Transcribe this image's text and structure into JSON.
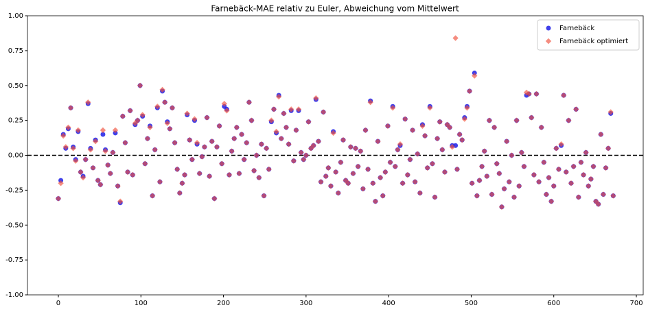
{
  "chart_data": {
    "type": "scatter",
    "title": "Farnebäck-MAE relativ zu Euler, Abweichung vom Mittelwert",
    "x": [
      0,
      3,
      6,
      9,
      12,
      15,
      18,
      21,
      24,
      27,
      30,
      33,
      36,
      39,
      42,
      45,
      48,
      51,
      54,
      57,
      60,
      63,
      66,
      69,
      72,
      75,
      78,
      81,
      84,
      87,
      90,
      93,
      96,
      99,
      102,
      105,
      108,
      111,
      114,
      117,
      120,
      123,
      126,
      129,
      132,
      135,
      138,
      141,
      144,
      147,
      150,
      153,
      156,
      159,
      162,
      165,
      168,
      171,
      174,
      177,
      180,
      183,
      186,
      189,
      192,
      195,
      198,
      201,
      204,
      207,
      210,
      213,
      216,
      219,
      222,
      225,
      228,
      231,
      234,
      237,
      240,
      243,
      246,
      249,
      252,
      255,
      258,
      261,
      264,
      267,
      270,
      273,
      276,
      279,
      282,
      285,
      288,
      291,
      294,
      297,
      300,
      303,
      306,
      309,
      312,
      315,
      318,
      321,
      324,
      327,
      330,
      333,
      336,
      339,
      342,
      345,
      348,
      351,
      354,
      357,
      360,
      363,
      366,
      369,
      372,
      375,
      378,
      381,
      384,
      387,
      390,
      393,
      396,
      399,
      402,
      405,
      408,
      411,
      414,
      417,
      420,
      423,
      426,
      429,
      432,
      435,
      438,
      441,
      444,
      447,
      450,
      453,
      456,
      459,
      462,
      465,
      468,
      471,
      474,
      477,
      481,
      483,
      486,
      489,
      492,
      495,
      498,
      501,
      504,
      507,
      510,
      513,
      516,
      519,
      522,
      525,
      528,
      531,
      534,
      537,
      540,
      543,
      546,
      549,
      552,
      555,
      558,
      561,
      564,
      567,
      570,
      573,
      576,
      579,
      582,
      585,
      588,
      591,
      594,
      597,
      600,
      603,
      606,
      609,
      612,
      615,
      618,
      621,
      624,
      627,
      630,
      633,
      636,
      639,
      642,
      645,
      648,
      651,
      654,
      657,
      660,
      663,
      666,
      669,
      672
    ],
    "series": [
      {
        "name": "Farnebäck",
        "color": "#1f1fe6",
        "marker": "circle",
        "values": [
          -0.31,
          -0.18,
          0.15,
          0.05,
          0.19,
          0.34,
          0.06,
          -0.03,
          0.17,
          -0.12,
          -0.15,
          -0.03,
          0.37,
          0.05,
          -0.09,
          0.11,
          -0.18,
          -0.21,
          0.15,
          0.04,
          -0.07,
          -0.13,
          0.02,
          0.16,
          -0.22,
          -0.34,
          0.28,
          0.09,
          -0.12,
          0.32,
          -0.14,
          0.22,
          0.25,
          0.5,
          0.28,
          -0.06,
          0.12,
          0.21,
          -0.29,
          0.04,
          0.34,
          -0.19,
          0.46,
          0.38,
          0.24,
          0.19,
          0.34,
          0.09,
          -0.1,
          -0.27,
          -0.2,
          -0.14,
          0.29,
          0.11,
          -0.03,
          0.25,
          0.08,
          -0.13,
          -0.01,
          0.06,
          0.27,
          -0.15,
          0.1,
          -0.31,
          0.06,
          0.21,
          -0.06,
          0.35,
          0.33,
          -0.14,
          0.03,
          0.12,
          0.2,
          -0.13,
          0.15,
          -0.03,
          0.09,
          0.38,
          0.25,
          -0.11,
          0.0,
          -0.16,
          0.08,
          -0.29,
          0.05,
          -0.1,
          0.24,
          0.33,
          0.16,
          0.43,
          0.12,
          0.3,
          0.2,
          0.08,
          0.32,
          -0.04,
          0.18,
          0.32,
          0.02,
          -0.03,
          0.0,
          0.24,
          0.05,
          0.07,
          0.4,
          0.1,
          -0.19,
          0.31,
          -0.15,
          -0.09,
          -0.22,
          0.17,
          -0.12,
          -0.27,
          -0.05,
          0.11,
          -0.18,
          -0.2,
          0.06,
          -0.13,
          0.05,
          -0.08,
          0.03,
          -0.24,
          0.18,
          -0.1,
          0.39,
          -0.2,
          -0.33,
          0.1,
          -0.16,
          -0.29,
          -0.12,
          0.21,
          -0.05,
          0.35,
          -0.08,
          0.04,
          0.07,
          -0.2,
          0.26,
          -0.14,
          -0.03,
          0.18,
          -0.19,
          0.01,
          -0.27,
          0.22,
          0.14,
          -0.09,
          0.35,
          -0.06,
          -0.3,
          0.12,
          0.24,
          0.04,
          -0.12,
          0.22,
          0.2,
          0.07,
          0.07,
          -0.1,
          0.15,
          0.11,
          0.27,
          0.35,
          0.46,
          -0.2,
          0.59,
          -0.29,
          -0.18,
          -0.08,
          0.03,
          -0.15,
          0.25,
          -0.28,
          0.2,
          -0.06,
          -0.13,
          -0.37,
          -0.24,
          0.1,
          -0.19,
          0.0,
          -0.3,
          0.25,
          -0.22,
          0.02,
          -0.08,
          0.43,
          0.44,
          0.27,
          -0.14,
          0.44,
          -0.19,
          0.2,
          -0.05,
          -0.28,
          -0.16,
          -0.33,
          -0.22,
          0.05,
          -0.1,
          0.07,
          0.43,
          -0.12,
          0.25,
          -0.2,
          -0.08,
          0.33,
          -0.3,
          -0.05,
          -0.14,
          0.02,
          -0.22,
          -0.17,
          -0.08,
          -0.33,
          -0.35,
          0.15,
          -0.28,
          -0.09,
          0.05,
          0.3,
          -0.29
        ]
      },
      {
        "name": "Farnebäck optimiert",
        "color": "#f0503c",
        "marker": "diamond",
        "values": [
          -0.31,
          -0.2,
          0.14,
          0.06,
          0.2,
          0.34,
          0.05,
          -0.04,
          0.18,
          -0.12,
          -0.16,
          -0.03,
          0.38,
          0.04,
          -0.09,
          0.1,
          -0.18,
          -0.21,
          0.18,
          0.03,
          -0.07,
          -0.13,
          0.02,
          0.18,
          -0.22,
          -0.33,
          0.28,
          0.09,
          -0.12,
          0.32,
          -0.14,
          0.23,
          0.25,
          0.5,
          0.29,
          -0.06,
          0.12,
          0.2,
          -0.29,
          0.04,
          0.35,
          -0.19,
          0.47,
          0.38,
          0.23,
          0.19,
          0.34,
          0.09,
          -0.1,
          -0.27,
          -0.2,
          -0.14,
          0.3,
          0.11,
          -0.03,
          0.26,
          0.09,
          -0.13,
          -0.01,
          0.06,
          0.27,
          -0.15,
          0.1,
          -0.31,
          0.06,
          0.21,
          -0.06,
          0.37,
          0.32,
          -0.14,
          0.03,
          0.12,
          0.2,
          -0.13,
          0.15,
          -0.03,
          0.09,
          0.38,
          0.25,
          -0.11,
          0.0,
          -0.16,
          0.08,
          -0.29,
          0.05,
          -0.1,
          0.25,
          0.33,
          0.17,
          0.42,
          0.12,
          0.3,
          0.2,
          0.08,
          0.33,
          -0.04,
          0.18,
          0.33,
          0.02,
          -0.03,
          0.0,
          0.24,
          0.05,
          0.07,
          0.41,
          0.1,
          -0.19,
          0.31,
          -0.15,
          -0.09,
          -0.22,
          0.16,
          -0.12,
          -0.27,
          -0.05,
          0.11,
          -0.18,
          -0.2,
          0.06,
          -0.13,
          0.05,
          -0.08,
          0.03,
          -0.24,
          0.18,
          -0.1,
          0.38,
          -0.2,
          -0.33,
          0.1,
          -0.16,
          -0.29,
          -0.12,
          0.21,
          -0.05,
          0.34,
          -0.08,
          0.04,
          0.08,
          -0.2,
          0.26,
          -0.14,
          -0.03,
          0.18,
          -0.19,
          0.01,
          -0.27,
          0.21,
          0.14,
          -0.09,
          0.34,
          -0.06,
          -0.3,
          0.12,
          0.24,
          0.04,
          -0.12,
          0.22,
          0.2,
          0.06,
          0.84,
          -0.1,
          0.15,
          0.11,
          0.26,
          0.34,
          0.46,
          -0.2,
          0.57,
          -0.29,
          -0.18,
          -0.08,
          0.03,
          -0.15,
          0.25,
          -0.28,
          0.2,
          -0.06,
          -0.13,
          -0.37,
          -0.24,
          0.1,
          -0.19,
          0.0,
          -0.3,
          0.25,
          -0.22,
          0.02,
          -0.08,
          0.45,
          0.44,
          0.27,
          -0.14,
          0.44,
          -0.19,
          0.2,
          -0.05,
          -0.28,
          -0.16,
          -0.33,
          -0.22,
          0.05,
          -0.1,
          0.08,
          0.43,
          -0.12,
          0.25,
          -0.2,
          -0.08,
          0.33,
          -0.3,
          -0.05,
          -0.14,
          0.02,
          -0.22,
          -0.17,
          -0.08,
          -0.33,
          -0.35,
          0.15,
          -0.28,
          -0.09,
          0.05,
          0.31,
          -0.29
        ]
      }
    ],
    "xlim": [
      -37.4,
      708.3
    ],
    "xticks": [
      0,
      100,
      200,
      300,
      400,
      500,
      600,
      700
    ],
    "ylim": [
      -1,
      1
    ],
    "yticks": [
      {
        "value": -1,
        "label": "-1.00"
      },
      {
        "value": -0.75,
        "label": "-0.75"
      },
      {
        "value": -0.5,
        "label": "-0.50"
      },
      {
        "value": -0.25,
        "label": "-0.25"
      },
      {
        "value": 0,
        "label": "0.00"
      },
      {
        "value": 0.25,
        "label": "0.25"
      },
      {
        "value": 0.5,
        "label": "0.50"
      },
      {
        "value": 0.75,
        "label": "0.75"
      },
      {
        "value": 1,
        "label": "1.00"
      }
    ],
    "reference_line": 0,
    "grid": false,
    "legend": "upper right"
  }
}
